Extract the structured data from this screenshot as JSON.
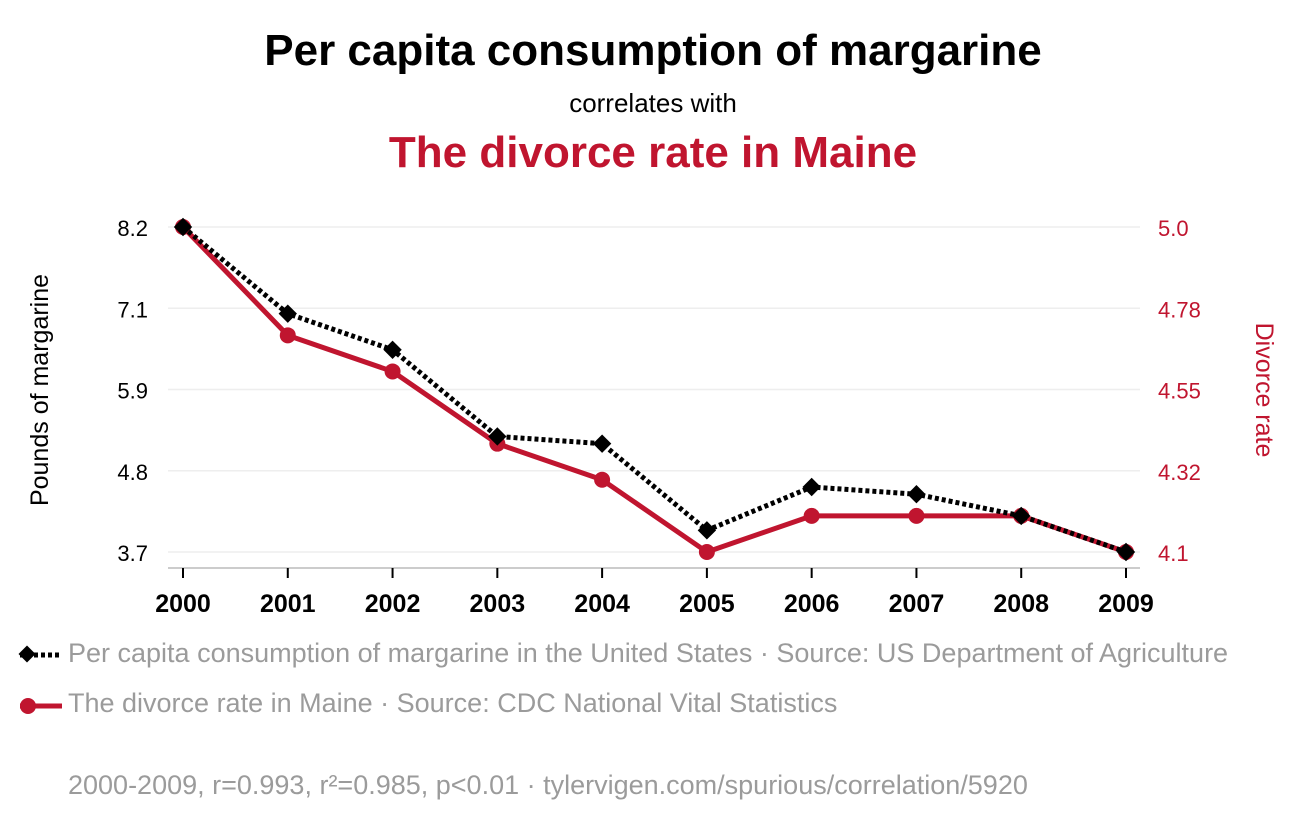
{
  "header": {
    "title": "Per capita consumption of margarine",
    "subtitle": "correlates with",
    "title2": "The divorce rate in Maine"
  },
  "colors": {
    "series1": "#000000",
    "series2": "#c0152f",
    "grid": "#eeeeee",
    "muted": "#9b9b9b"
  },
  "chart_data": {
    "type": "line",
    "x": [
      "2000",
      "2001",
      "2002",
      "2003",
      "2004",
      "2005",
      "2006",
      "2007",
      "2008",
      "2009"
    ],
    "left_axis": {
      "label": "Pounds of margarine",
      "ticks": [
        "8.2",
        "7.1",
        "5.9",
        "4.8",
        "3.7"
      ],
      "range": [
        3.7,
        8.2
      ]
    },
    "right_axis": {
      "label": "Divorce rate",
      "ticks": [
        "5.0",
        "4.78",
        "4.55",
        "4.32",
        "4.1"
      ],
      "range": [
        4.1,
        5.0
      ]
    },
    "grid": true,
    "series": [
      {
        "name": "Per capita consumption of margarine in the United States",
        "axis": "left",
        "style": "dotted",
        "marker": "diamond",
        "values": [
          8.2,
          7.0,
          6.5,
          5.3,
          5.2,
          4.0,
          4.6,
          4.5,
          4.2,
          3.7
        ]
      },
      {
        "name": "The divorce rate in Maine",
        "axis": "right",
        "style": "solid",
        "marker": "circle",
        "values": [
          5.0,
          4.7,
          4.6,
          4.4,
          4.3,
          4.1,
          4.2,
          4.2,
          4.2,
          4.1
        ]
      }
    ]
  },
  "legend": {
    "item1": "Per capita consumption of margarine in the United States · Source: US Department of Agriculture",
    "item2": "The divorce rate in Maine · Source: CDC National Vital Statistics"
  },
  "footer": "2000-2009, r=0.993, r²=0.985, p<0.01 · tylervigen.com/spurious/correlation/5920"
}
